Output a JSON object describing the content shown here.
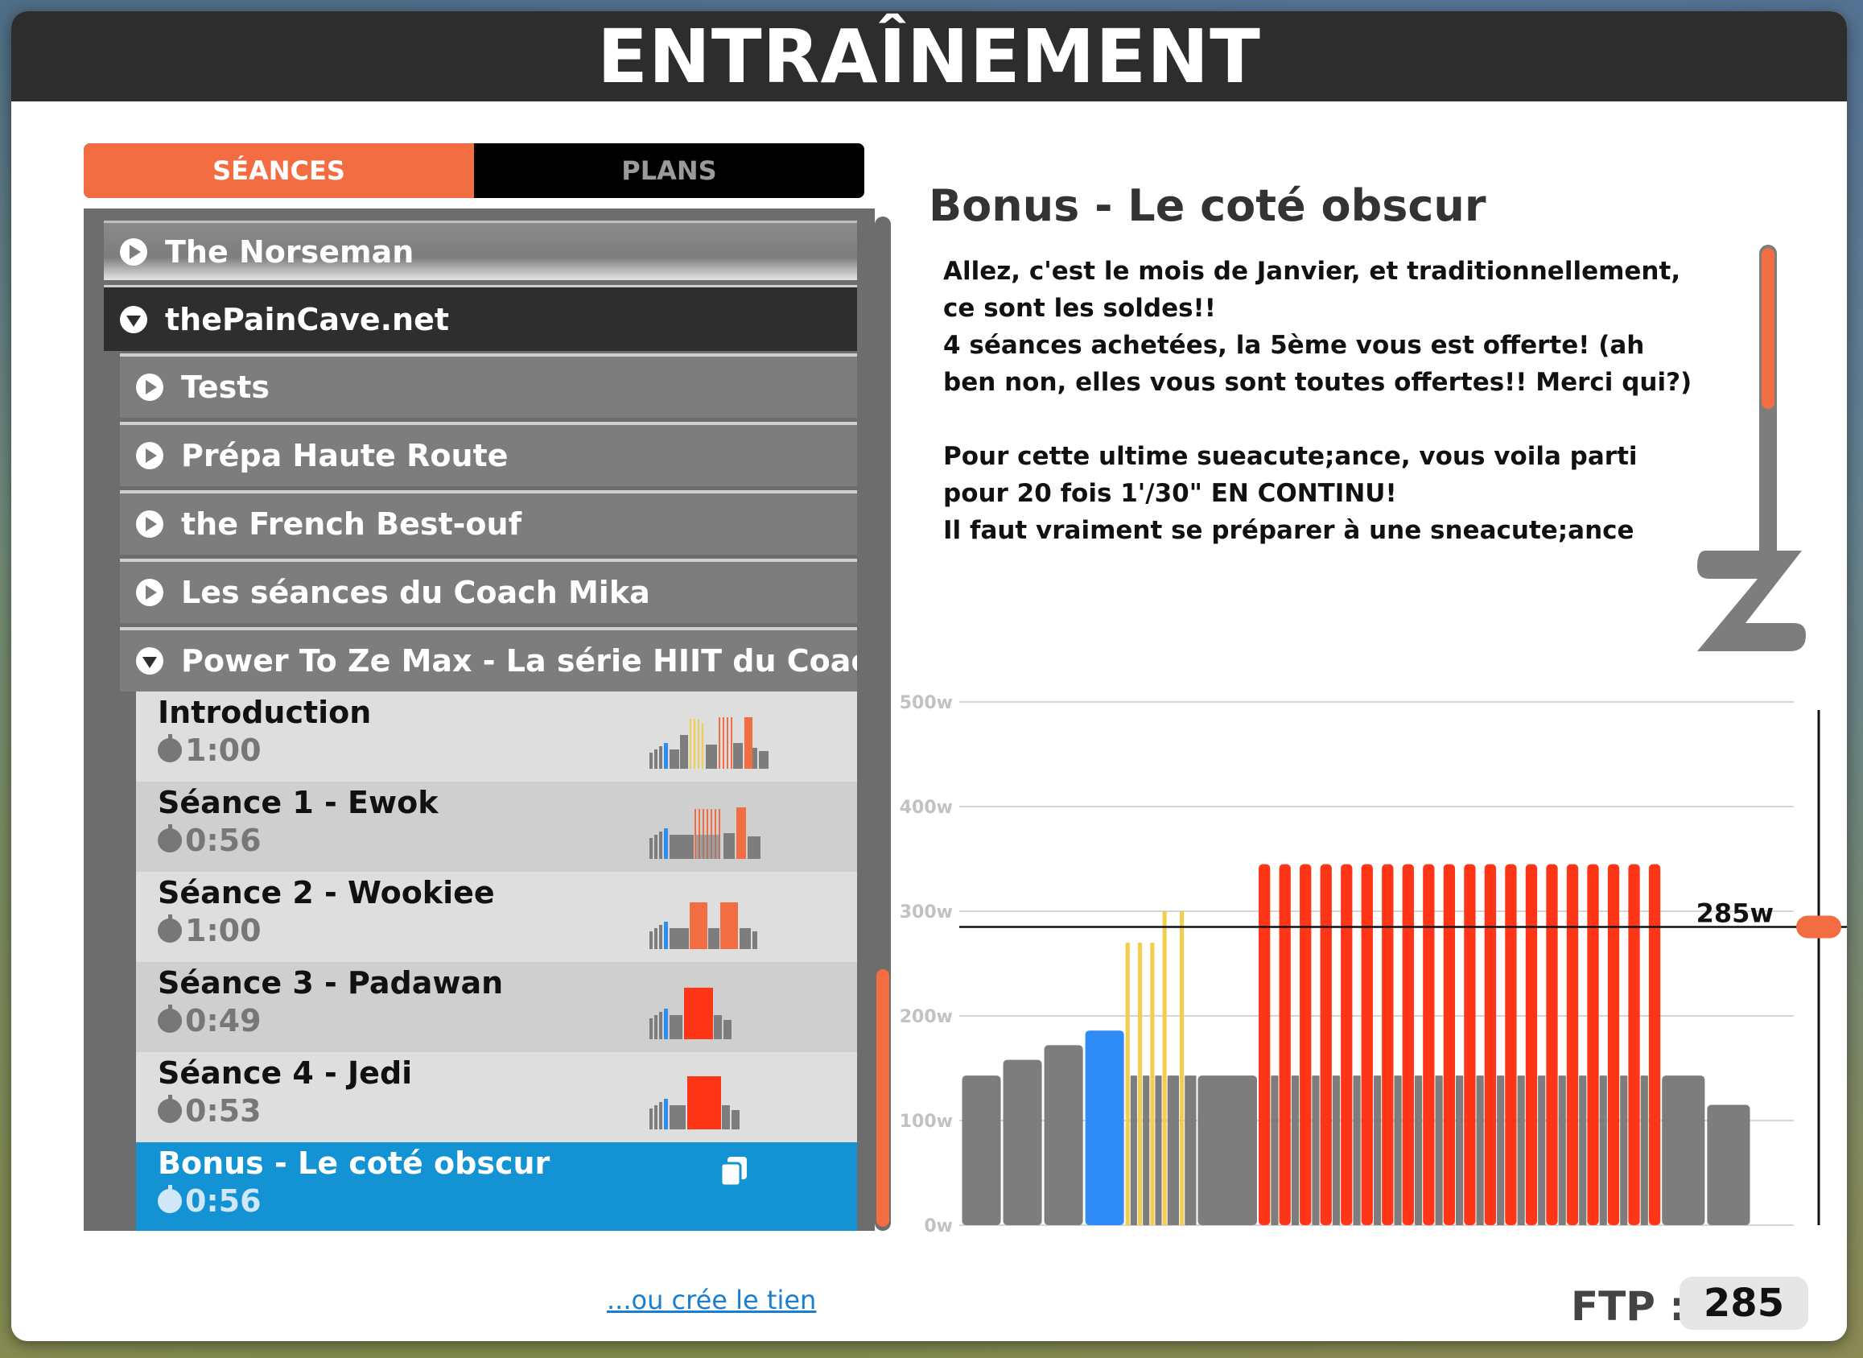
{
  "title": "ENTRAÎNEMENT",
  "tabs": [
    {
      "label": "SÉANCES",
      "active": true
    },
    {
      "label": "PLANS",
      "active": false
    }
  ],
  "list": {
    "norseman": "The Norseman",
    "paincave": "thePainCave.net",
    "sub_items": [
      "Tests",
      "Prépa Haute Route",
      "the French Best-ouf",
      "Les séances du Coach Mika",
      "Power To Ze Max - La série HIIT du Coach Mika"
    ],
    "workouts": [
      {
        "name": "Introduction",
        "time": "1:00"
      },
      {
        "name": "Séance 1 - Ewok",
        "time": "0:56"
      },
      {
        "name": "Séance 2 - Wookiee",
        "time": "1:00"
      },
      {
        "name": "Séance 3 - Padawan",
        "time": "0:49"
      },
      {
        "name": "Séance 4 - Jedi",
        "time": "0:53"
      },
      {
        "name": "Bonus - Le coté obscur",
        "time": "0:56"
      }
    ]
  },
  "create_link": "...ou crée le tien",
  "detail": {
    "title": "Bonus - Le coté obscur",
    "description": "Allez, c'est le mois de Janvier, et traditionnellement, ce sont les soldes!!\n4 séances achetées, la 5ème vous est offerte! (ah ben non, elles vous sont toutes offertes!! Merci qui?)\n\nPour cette ultime sueacute;ance, vous voila parti pour 20 fois 1'/30\" EN CONTINU!\nIl faut vraiment se préparer à une sneacute;ance hard. Si"
  },
  "ftp": {
    "label": "FTP :",
    "value": "285"
  },
  "colors": {
    "accent": "#f26e42",
    "selected": "#1493d4",
    "bar_gray": "#7d7d7d",
    "bar_blue": "#2f8bf5",
    "bar_yellow": "#f2cd4e",
    "bar_red": "#ff3518"
  },
  "chart_data": {
    "type": "bar",
    "ylim": [
      0,
      500
    ],
    "yticks": [
      "0w",
      "100w",
      "200w",
      "300w",
      "400w",
      "500w"
    ],
    "ftp_line": 285,
    "ftp_label": "285w",
    "segments": [
      {
        "w": 1,
        "watts": 143,
        "zone": "gray"
      },
      {
        "w": 1,
        "watts": 158,
        "zone": "gray"
      },
      {
        "w": 1,
        "watts": 172,
        "zone": "gray"
      },
      {
        "w": 1,
        "watts": 186,
        "zone": "blue"
      },
      {
        "w": 0.12,
        "watts": 270,
        "zone": "yellow"
      },
      {
        "w": 0.18,
        "watts": 143,
        "zone": "gray"
      },
      {
        "w": 0.12,
        "watts": 270,
        "zone": "yellow"
      },
      {
        "w": 0.18,
        "watts": 143,
        "zone": "gray"
      },
      {
        "w": 0.12,
        "watts": 270,
        "zone": "yellow"
      },
      {
        "w": 0.18,
        "watts": 143,
        "zone": "gray"
      },
      {
        "w": 0.12,
        "watts": 300,
        "zone": "yellow"
      },
      {
        "w": 0.3,
        "watts": 143,
        "zone": "gray"
      },
      {
        "w": 0.12,
        "watts": 300,
        "zone": "yellow"
      },
      {
        "w": 0.3,
        "watts": 143,
        "zone": "gray"
      },
      {
        "w": 1.5,
        "watts": 143,
        "zone": "gray"
      },
      {
        "w": 0.3,
        "watts": 345,
        "zone": "red",
        "repeat": 20,
        "rest_w": 0.2,
        "rest_watts": 143
      },
      {
        "w": 1.1,
        "watts": 143,
        "zone": "gray"
      },
      {
        "w": 1.1,
        "watts": 115,
        "zone": "gray"
      }
    ]
  }
}
